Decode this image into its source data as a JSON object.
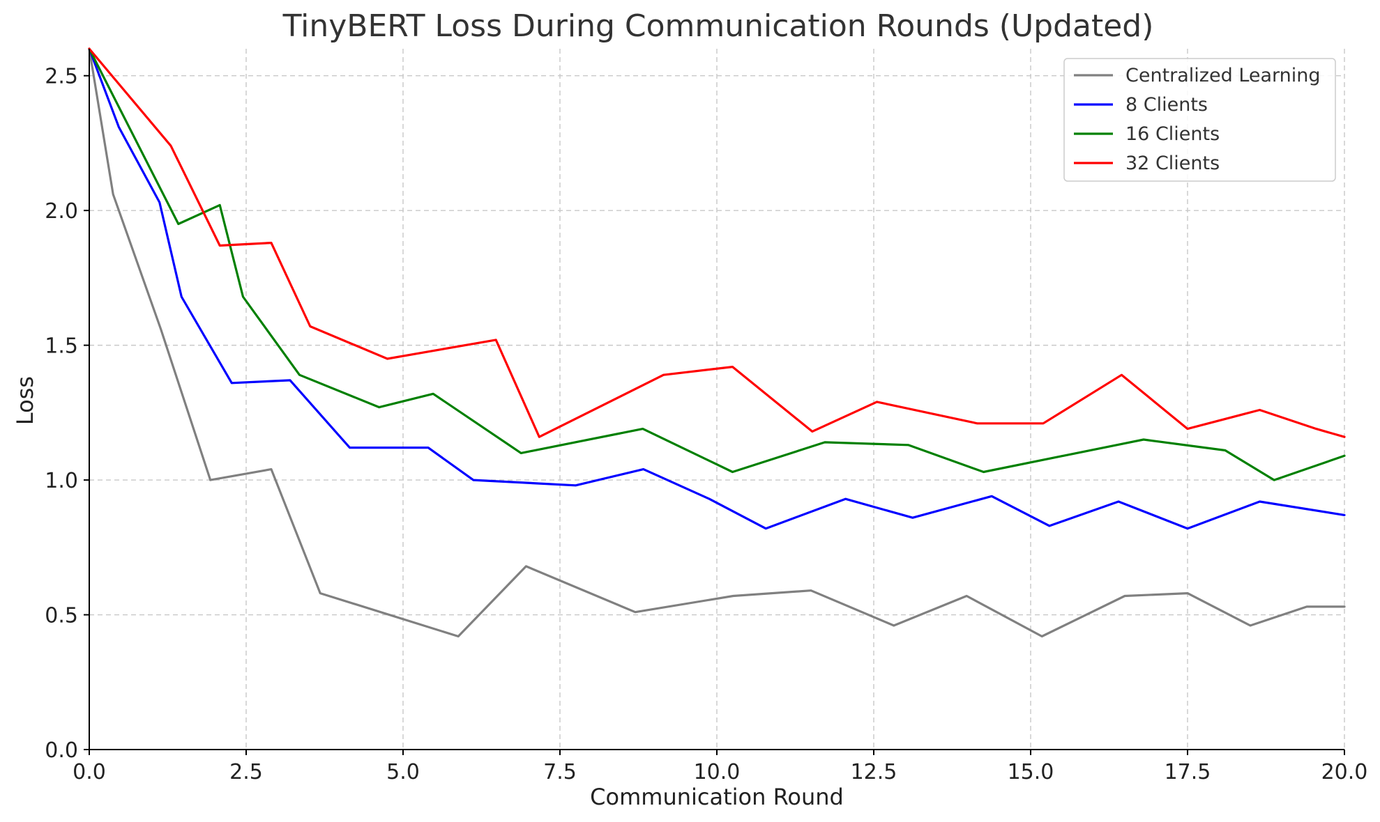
{
  "chart_data": {
    "type": "line",
    "title": "TinyBERT Loss During Communication Rounds (Updated)",
    "xlabel": "Communication Round",
    "ylabel": "Loss",
    "xlim": [
      0,
      20
    ],
    "ylim": [
      0,
      2.6
    ],
    "xticks": [
      "0.0",
      "2.5",
      "5.0",
      "7.5",
      "10.0",
      "12.5",
      "15.0",
      "17.5",
      "20.0"
    ],
    "yticks": [
      "0.0",
      "0.5",
      "1.0",
      "1.5",
      "2.0",
      "2.5"
    ],
    "grid": true,
    "legend_position": "top-right",
    "series": [
      {
        "name": "Centralized Learning",
        "color": "#808080",
        "x": [
          0.0,
          0.38,
          1.14,
          1.93,
          2.9,
          3.68,
          5.88,
          6.96,
          8.7,
          10.26,
          11.5,
          12.82,
          13.98,
          15.18,
          16.5,
          17.5,
          18.5,
          19.4,
          20.0
        ],
        "y": [
          2.6,
          2.06,
          1.56,
          1.0,
          1.04,
          0.58,
          0.42,
          0.68,
          0.51,
          0.57,
          0.59,
          0.46,
          0.57,
          0.42,
          0.57,
          0.58,
          0.46,
          0.53,
          0.53
        ]
      },
      {
        "name": "8 Clients",
        "color": "#0000ff",
        "x": [
          0.0,
          0.47,
          1.12,
          1.47,
          2.27,
          3.2,
          4.15,
          5.4,
          6.12,
          7.75,
          8.83,
          9.88,
          10.78,
          12.05,
          13.12,
          14.38,
          15.3,
          16.4,
          17.5,
          18.65,
          20.0
        ],
        "y": [
          2.6,
          2.31,
          2.03,
          1.68,
          1.36,
          1.37,
          1.12,
          1.12,
          1.0,
          0.98,
          1.04,
          0.93,
          0.82,
          0.93,
          0.86,
          0.94,
          0.83,
          0.92,
          0.82,
          0.92,
          0.87
        ]
      },
      {
        "name": "16 Clients",
        "color": "#008000",
        "x": [
          0.0,
          1.42,
          2.08,
          2.45,
          3.35,
          4.62,
          5.48,
          6.88,
          8.82,
          10.25,
          11.72,
          13.05,
          14.25,
          16.8,
          18.1,
          18.88,
          20.0
        ],
        "y": [
          2.6,
          1.95,
          2.02,
          1.68,
          1.39,
          1.27,
          1.32,
          1.1,
          1.19,
          1.03,
          1.14,
          1.13,
          1.03,
          1.15,
          1.11,
          1.0,
          1.09
        ]
      },
      {
        "name": "32 Clients",
        "color": "#ff0000",
        "x": [
          0.0,
          1.3,
          2.08,
          2.9,
          3.52,
          4.75,
          6.48,
          7.17,
          9.15,
          10.25,
          11.52,
          12.55,
          14.15,
          15.2,
          16.45,
          17.5,
          18.65,
          19.55,
          20.0
        ],
        "y": [
          2.6,
          2.24,
          1.87,
          1.88,
          1.57,
          1.45,
          1.52,
          1.16,
          1.39,
          1.42,
          1.18,
          1.29,
          1.21,
          1.21,
          1.39,
          1.19,
          1.26,
          1.19,
          1.16
        ]
      }
    ]
  }
}
